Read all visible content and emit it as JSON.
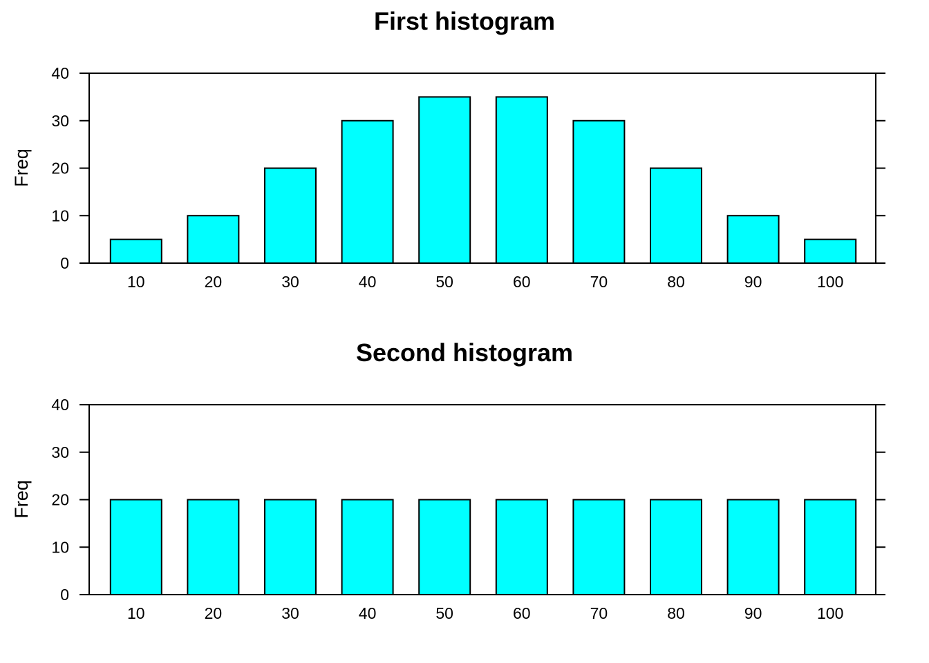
{
  "chart_data": [
    {
      "type": "bar",
      "title": "First histogram",
      "xlabel": "",
      "ylabel": "Freq",
      "categories": [
        "10",
        "20",
        "30",
        "40",
        "50",
        "60",
        "70",
        "80",
        "90",
        "100"
      ],
      "values": [
        5,
        10,
        20,
        30,
        35,
        35,
        30,
        20,
        10,
        5
      ],
      "ylim": [
        0,
        40
      ],
      "yticks": [
        "0",
        "10",
        "20",
        "30",
        "40"
      ],
      "bar_color": "#00ffff",
      "grid": false,
      "legend": "none"
    },
    {
      "type": "bar",
      "title": "Second histogram",
      "xlabel": "",
      "ylabel": "Freq",
      "categories": [
        "10",
        "20",
        "30",
        "40",
        "50",
        "60",
        "70",
        "80",
        "90",
        "100"
      ],
      "values": [
        20,
        20,
        20,
        20,
        20,
        20,
        20,
        20,
        20,
        20
      ],
      "ylim": [
        0,
        40
      ],
      "yticks": [
        "0",
        "10",
        "20",
        "30",
        "40"
      ],
      "bar_color": "#00ffff",
      "grid": false,
      "legend": "none"
    }
  ]
}
